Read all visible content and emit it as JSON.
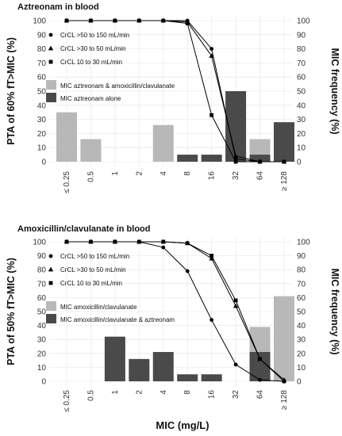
{
  "x_label": "MIC (mg/L)",
  "chart_data": [
    {
      "type": "bar+line",
      "title": "Aztreonam in blood",
      "ylabel_left": "PTA of 60% fT>MIC (%)",
      "ylabel_right": "MIC frequency (%)",
      "categories": [
        "≤ 0.25",
        "0.5",
        "1",
        "2",
        "4",
        "8",
        "16",
        "32",
        "64",
        "≥ 128"
      ],
      "ylim": [
        0,
        100
      ],
      "yticks": [
        0,
        10,
        20,
        30,
        40,
        50,
        60,
        70,
        80,
        90,
        100
      ],
      "bar_series": [
        {
          "name": "MIC aztreonam & amoxicillin/clavulanate",
          "color": "#b8b8b8",
          "values": [
            35,
            16,
            0,
            0,
            26,
            0,
            0,
            0,
            16,
            5
          ]
        },
        {
          "name": "MIC aztreonam alone",
          "color": "#4a4a4a",
          "values": [
            0,
            0,
            0,
            0,
            0,
            5,
            5,
            50,
            5,
            28
          ]
        }
      ],
      "line_series": [
        {
          "name": "CrCL >50 to 150 mL/min",
          "marker": "circle",
          "values": [
            100,
            100,
            100,
            100,
            100,
            100,
            80,
            2,
            0,
            0
          ]
        },
        {
          "name": "CrCL >30 to 50 mL/min",
          "marker": "triangle",
          "values": [
            100,
            100,
            100,
            100,
            100,
            99,
            75,
            4,
            0,
            0
          ]
        },
        {
          "name": "CrCL 10 to 30 mL/min",
          "marker": "square",
          "values": [
            100,
            100,
            100,
            100,
            100,
            98,
            33,
            0,
            0,
            0
          ]
        }
      ],
      "legend_placement": "left"
    },
    {
      "type": "bar+line",
      "title": "Amoxicillin/clavulanate in blood",
      "ylabel_left": "PTA of 50% fT>MIC (%)",
      "ylabel_right": "MIC frequency (%)",
      "categories": [
        "≤ 0.25",
        "0.5",
        "1",
        "2",
        "4",
        "8",
        "16",
        "32",
        "64",
        "≥ 128"
      ],
      "ylim": [
        0,
        100
      ],
      "yticks": [
        0,
        10,
        20,
        30,
        40,
        50,
        60,
        70,
        80,
        90,
        100
      ],
      "bar_series": [
        {
          "name": "MIC amoxicillin/clavulanate",
          "color": "#b8b8b8",
          "values": [
            0,
            0,
            0,
            0,
            0,
            0,
            0,
            0,
            39,
            61
          ]
        },
        {
          "name": "MIC amoxicillin/clavulanate & aztreonam",
          "color": "#4a4a4a",
          "values": [
            0,
            0,
            32,
            16,
            21,
            5,
            5,
            0,
            21,
            0
          ]
        }
      ],
      "line_series": [
        {
          "name": "CrCL >50 to 150 mL/min",
          "marker": "circle",
          "values": [
            100,
            100,
            100,
            100,
            96,
            79,
            44,
            12,
            1,
            0
          ]
        },
        {
          "name": "CrCL >30 to 50 mL/min",
          "marker": "triangle",
          "values": [
            100,
            100,
            100,
            100,
            100,
            99,
            88,
            54,
            16,
            1
          ]
        },
        {
          "name": "CrCL 10 to 30 mL/min",
          "marker": "square",
          "values": [
            100,
            100,
            100,
            100,
            100,
            99,
            90,
            58,
            16,
            0
          ]
        }
      ],
      "legend_placement": "left"
    }
  ]
}
